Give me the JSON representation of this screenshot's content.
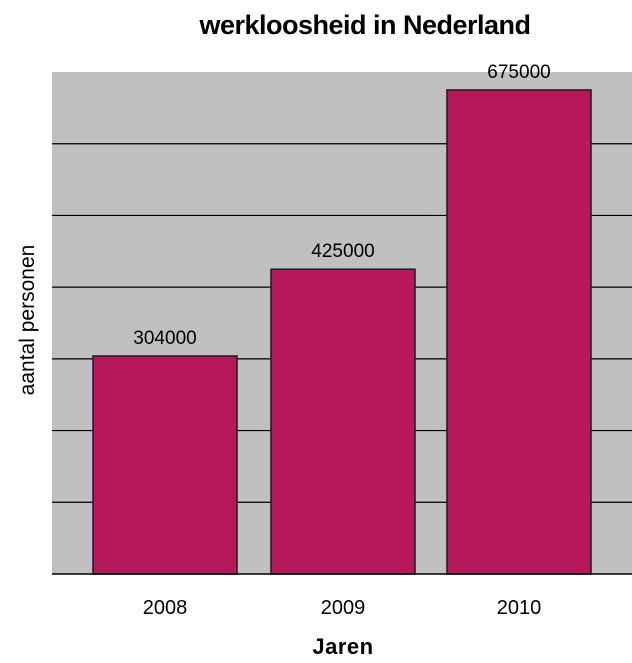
{
  "chart_data": {
    "type": "bar",
    "title": "werkloosheid in Nederland",
    "xlabel": "Jaren",
    "ylabel": "aantal personen",
    "categories": [
      "2008",
      "2009",
      "2010"
    ],
    "values": [
      304000,
      425000,
      675000
    ],
    "data_labels": [
      "304000",
      "425000",
      "675000"
    ],
    "ylim": [
      0,
      700000
    ],
    "grid": true,
    "colors": {
      "bar": "#B5195B",
      "bar_edge": "#1a1a1a",
      "plot_background": "#C0C0C0",
      "gridline": "#000000"
    }
  }
}
